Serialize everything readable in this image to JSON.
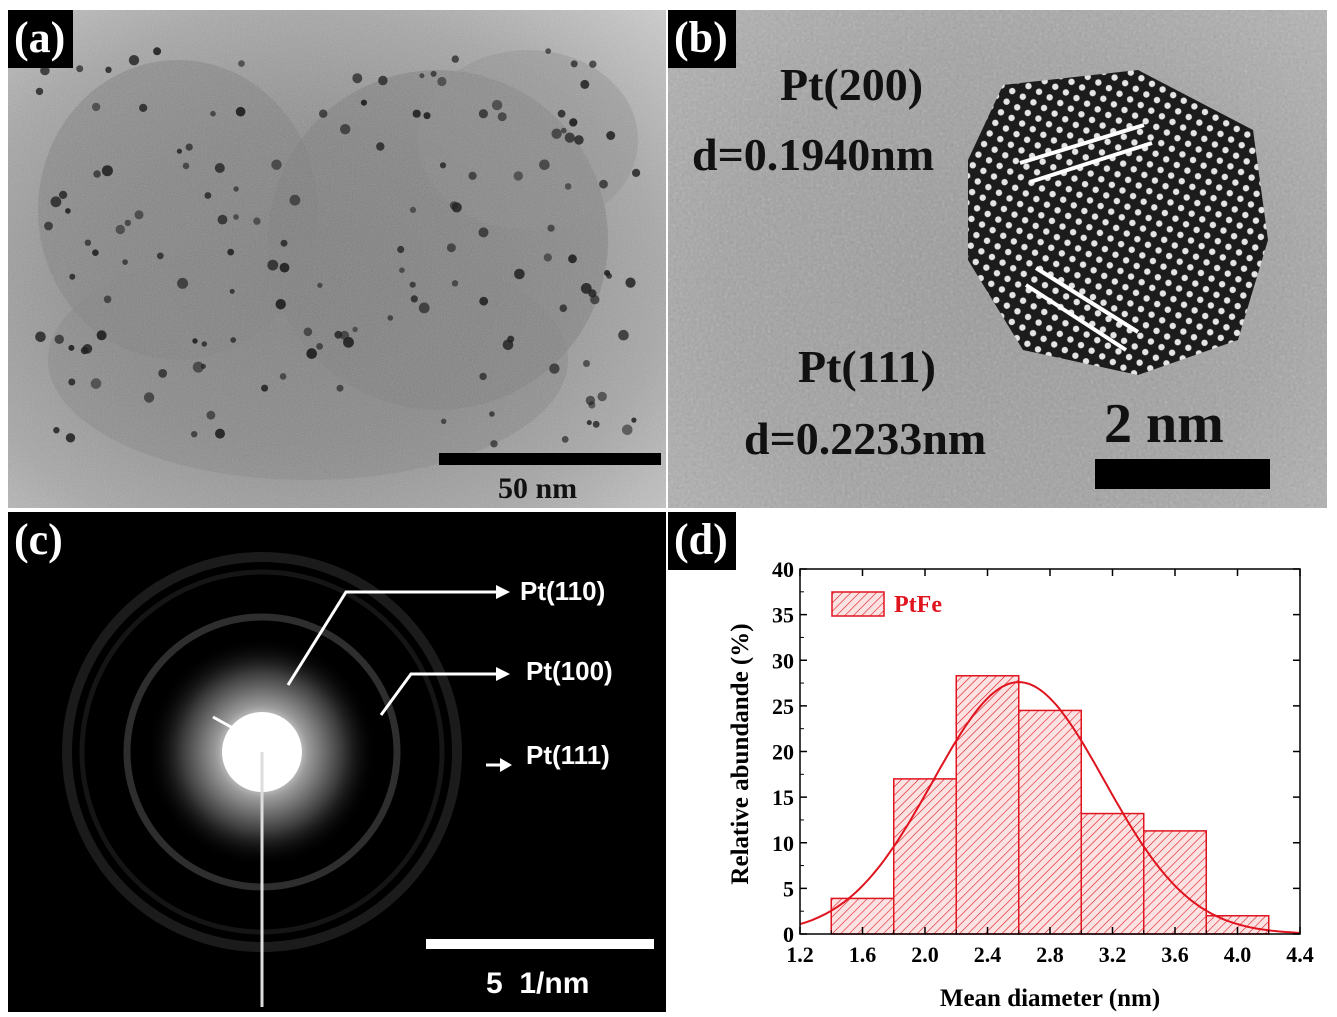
{
  "figure": {
    "panel_a": {
      "tag": "(a)",
      "scale_bar_label": "50 nm"
    },
    "panel_b": {
      "tag": "(b)",
      "plane_1": "Pt(200)",
      "spacing_1": "d=0.1940nm",
      "plane_2": "Pt(111)",
      "spacing_2": "d=0.2233nm",
      "scale_bar_label": "2 nm"
    },
    "panel_c": {
      "tag": "(c)",
      "ring_labels": [
        "Pt(110)",
        "Pt(100)",
        "Pt(111)"
      ],
      "scale_bar_label": "5  1/nm"
    },
    "panel_d": {
      "tag": "(d)"
    }
  },
  "chart_data": {
    "type": "bar",
    "xlabel": "Mean diameter (nm)",
    "ylabel": "Relative abundande (%)",
    "xlim": [
      1.2,
      4.4
    ],
    "ylim": [
      0,
      40
    ],
    "xticks": [
      "1.2",
      "1.6",
      "2.0",
      "2.4",
      "2.8",
      "3.2",
      "3.6",
      "4.0",
      "4.4"
    ],
    "yticks": [
      "0",
      "5",
      "10",
      "15",
      "20",
      "25",
      "30",
      "35",
      "40"
    ],
    "bins": [
      {
        "from": 1.4,
        "to": 1.8,
        "value": 3.9
      },
      {
        "from": 1.8,
        "to": 2.2,
        "value": 17.0
      },
      {
        "from": 2.2,
        "to": 2.6,
        "value": 28.3
      },
      {
        "from": 2.6,
        "to": 3.0,
        "value": 24.5
      },
      {
        "from": 3.0,
        "to": 3.4,
        "value": 13.2
      },
      {
        "from": 3.4,
        "to": 3.8,
        "value": 11.3
      },
      {
        "from": 3.8,
        "to": 4.2,
        "value": 2.0
      }
    ],
    "fit": {
      "type": "gaussian",
      "mean": 2.6,
      "sigma": 0.55,
      "peak": 27.6
    },
    "legend": {
      "label": "PtFe",
      "position": "top-left"
    },
    "series_color": "#e0141e"
  }
}
